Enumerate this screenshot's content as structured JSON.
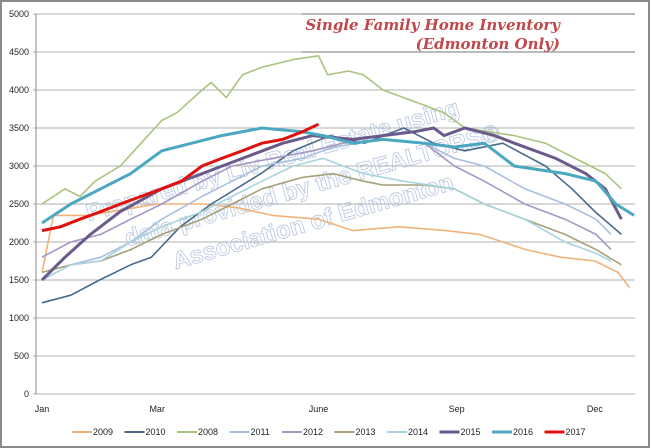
{
  "chart_data": {
    "type": "line",
    "title": "Single Family Home Inventory",
    "subtitle": "(Edmonton Only)",
    "watermark": [
      "Prepared by Liv Real Estate using",
      "data provided by the REALTORS®",
      "Association of Edmonton"
    ],
    "xlabel": "",
    "ylabel": "",
    "x_unit": "week of year",
    "xlim": [
      0,
      52
    ],
    "ylim": [
      0,
      5000
    ],
    "yticks": [
      0,
      500,
      1000,
      1500,
      2000,
      2500,
      3000,
      3500,
      4000,
      4500,
      5000
    ],
    "xticks": [
      {
        "label": "Jan",
        "week": 0
      },
      {
        "label": "Mar",
        "week": 10
      },
      {
        "label": "June",
        "week": 24
      },
      {
        "label": "Sep",
        "week": 36
      },
      {
        "label": "Dec",
        "week": 48
      }
    ],
    "grid": true,
    "legend_position": "bottom",
    "series": [
      {
        "name": "2009",
        "color": "#f0b27a",
        "width": 1.6,
        "points": [
          [
            0,
            1600
          ],
          [
            1,
            2350
          ],
          [
            4,
            2350
          ],
          [
            8,
            2450
          ],
          [
            10,
            2500
          ],
          [
            14,
            2500
          ],
          [
            17,
            2450
          ],
          [
            20,
            2350
          ],
          [
            24,
            2300
          ],
          [
            27,
            2150
          ],
          [
            31,
            2200
          ],
          [
            35,
            2150
          ],
          [
            38,
            2100
          ],
          [
            42,
            1900
          ],
          [
            45,
            1800
          ],
          [
            48,
            1750
          ],
          [
            50,
            1600
          ],
          [
            51,
            1400
          ]
        ]
      },
      {
        "name": "2010",
        "color": "#4a6a8c",
        "width": 1.6,
        "points": [
          [
            0,
            1200
          ],
          [
            2.5,
            1300
          ],
          [
            5,
            1500
          ],
          [
            7.7,
            1700
          ],
          [
            9.5,
            1800
          ],
          [
            12,
            2200
          ],
          [
            14.7,
            2500
          ],
          [
            19,
            2900
          ],
          [
            21.8,
            3200
          ],
          [
            25,
            3400
          ],
          [
            28,
            3300
          ],
          [
            31.4,
            3500
          ],
          [
            34,
            3300
          ],
          [
            36.7,
            3200
          ],
          [
            40,
            3300
          ],
          [
            43.7,
            3000
          ],
          [
            46,
            2700
          ],
          [
            48,
            2400
          ],
          [
            50.3,
            2100
          ]
        ]
      },
      {
        "name": "2008",
        "color": "#a9c47f",
        "width": 1.6,
        "points": [
          [
            0,
            2500
          ],
          [
            2,
            2700
          ],
          [
            3.3,
            2600
          ],
          [
            4.6,
            2800
          ],
          [
            6.8,
            3000
          ],
          [
            8.6,
            3300
          ],
          [
            10.4,
            3600
          ],
          [
            11.7,
            3700
          ],
          [
            13.9,
            4000
          ],
          [
            14.7,
            4100
          ],
          [
            16,
            3900
          ],
          [
            17.4,
            4200
          ],
          [
            19.1,
            4300
          ],
          [
            21.8,
            4400
          ],
          [
            24,
            4450
          ],
          [
            24.8,
            4200
          ],
          [
            26.6,
            4250
          ],
          [
            27.9,
            4200
          ],
          [
            29.6,
            4000
          ],
          [
            33.2,
            3800
          ],
          [
            34.9,
            3700
          ],
          [
            36.7,
            3500
          ],
          [
            41,
            3400
          ],
          [
            43.7,
            3300
          ],
          [
            46.3,
            3100
          ],
          [
            48.9,
            2900
          ],
          [
            50.3,
            2700
          ]
        ]
      },
      {
        "name": "2011",
        "color": "#a9c0dc",
        "width": 1.6,
        "points": [
          [
            0,
            1500
          ],
          [
            2.5,
            1700
          ],
          [
            5.1,
            1800
          ],
          [
            7.7,
            2000
          ],
          [
            10.4,
            2300
          ],
          [
            13.9,
            2600
          ],
          [
            16.5,
            2800
          ],
          [
            19.1,
            3000
          ],
          [
            22.6,
            3100
          ],
          [
            25.3,
            3250
          ],
          [
            29.6,
            3350
          ],
          [
            33.2,
            3300
          ],
          [
            35.8,
            3100
          ],
          [
            38.4,
            3000
          ],
          [
            41.9,
            2700
          ],
          [
            45.4,
            2500
          ],
          [
            48.1,
            2300
          ],
          [
            49.4,
            2100
          ]
        ]
      },
      {
        "name": "2012",
        "color": "#a796c4",
        "width": 1.6,
        "points": [
          [
            0,
            1800
          ],
          [
            2.5,
            2000
          ],
          [
            5.1,
            2100
          ],
          [
            7.7,
            2300
          ],
          [
            10.4,
            2500
          ],
          [
            13.9,
            2800
          ],
          [
            16.5,
            3000
          ],
          [
            20,
            3100
          ],
          [
            23.5,
            3200
          ],
          [
            26.1,
            3300
          ],
          [
            29.6,
            3350
          ],
          [
            33.2,
            3300
          ],
          [
            35.8,
            3000
          ],
          [
            38.4,
            2800
          ],
          [
            41.9,
            2500
          ],
          [
            45.4,
            2300
          ],
          [
            48.1,
            2100
          ],
          [
            49.4,
            1900
          ]
        ]
      },
      {
        "name": "2013",
        "color": "#a8a07a",
        "width": 1.6,
        "points": [
          [
            0,
            1600
          ],
          [
            2.5,
            1700
          ],
          [
            5.1,
            1750
          ],
          [
            7.7,
            1900
          ],
          [
            10.4,
            2100
          ],
          [
            13.9,
            2300
          ],
          [
            16.5,
            2500
          ],
          [
            19.1,
            2700
          ],
          [
            22.6,
            2850
          ],
          [
            25.3,
            2900
          ],
          [
            27.9,
            2800
          ],
          [
            29.6,
            2750
          ],
          [
            33.2,
            2750
          ],
          [
            35.8,
            2700
          ],
          [
            38.4,
            2500
          ],
          [
            41.9,
            2300
          ],
          [
            45.4,
            2100
          ],
          [
            48.1,
            1900
          ],
          [
            50.3,
            1700
          ]
        ]
      },
      {
        "name": "2014",
        "color": "#a8d4e0",
        "width": 1.6,
        "points": [
          [
            0,
            1500
          ],
          [
            2.5,
            1700
          ],
          [
            5.1,
            1750
          ],
          [
            7.7,
            2000
          ],
          [
            10.4,
            2200
          ],
          [
            13.9,
            2400
          ],
          [
            16.5,
            2600
          ],
          [
            19.1,
            2800
          ],
          [
            21.8,
            3000
          ],
          [
            24.4,
            3100
          ],
          [
            27.9,
            2900
          ],
          [
            31.4,
            2800
          ],
          [
            35.8,
            2700
          ],
          [
            38.4,
            2500
          ],
          [
            41.9,
            2300
          ],
          [
            45.4,
            2000
          ],
          [
            48.1,
            1850
          ],
          [
            49.4,
            1750
          ]
        ]
      },
      {
        "name": "2015",
        "color": "#6a5a8c",
        "width": 3,
        "points": [
          [
            0,
            1500
          ],
          [
            2,
            1800
          ],
          [
            4.2,
            2100
          ],
          [
            6.8,
            2400
          ],
          [
            10.4,
            2700
          ],
          [
            13.9,
            2900
          ],
          [
            17.4,
            3100
          ],
          [
            20.9,
            3300
          ],
          [
            23.5,
            3400
          ],
          [
            27,
            3350
          ],
          [
            29.6,
            3400
          ],
          [
            32.3,
            3450
          ],
          [
            34,
            3500
          ],
          [
            34.9,
            3400
          ],
          [
            36.7,
            3500
          ],
          [
            39.3,
            3400
          ],
          [
            41,
            3300
          ],
          [
            44.6,
            3100
          ],
          [
            47.2,
            2900
          ],
          [
            48.9,
            2700
          ],
          [
            50.3,
            2300
          ]
        ]
      },
      {
        "name": "2016",
        "color": "#4aa8c0",
        "width": 3,
        "points": [
          [
            0,
            2250
          ],
          [
            2.5,
            2500
          ],
          [
            5.1,
            2700
          ],
          [
            7.7,
            2900
          ],
          [
            10.4,
            3200
          ],
          [
            13,
            3300
          ],
          [
            15.6,
            3400
          ],
          [
            19.1,
            3500
          ],
          [
            22.6,
            3450
          ],
          [
            24.4,
            3400
          ],
          [
            27,
            3300
          ],
          [
            29.6,
            3350
          ],
          [
            33.2,
            3300
          ],
          [
            35.8,
            3250
          ],
          [
            38.4,
            3300
          ],
          [
            41,
            3000
          ],
          [
            45.4,
            2900
          ],
          [
            48.1,
            2800
          ],
          [
            49.8,
            2500
          ],
          [
            51.4,
            2350
          ]
        ]
      },
      {
        "name": "2017",
        "color": "#e01010",
        "width": 3,
        "points": [
          [
            0,
            2150
          ],
          [
            1.6,
            2200
          ],
          [
            3.3,
            2300
          ],
          [
            5.1,
            2400
          ],
          [
            6.8,
            2500
          ],
          [
            8.6,
            2600
          ],
          [
            10.4,
            2700
          ],
          [
            12.1,
            2800
          ],
          [
            13.9,
            3000
          ],
          [
            15.6,
            3100
          ],
          [
            17.4,
            3200
          ],
          [
            19.1,
            3300
          ],
          [
            20.9,
            3350
          ],
          [
            22.6,
            3450
          ],
          [
            24,
            3550
          ]
        ]
      }
    ]
  }
}
